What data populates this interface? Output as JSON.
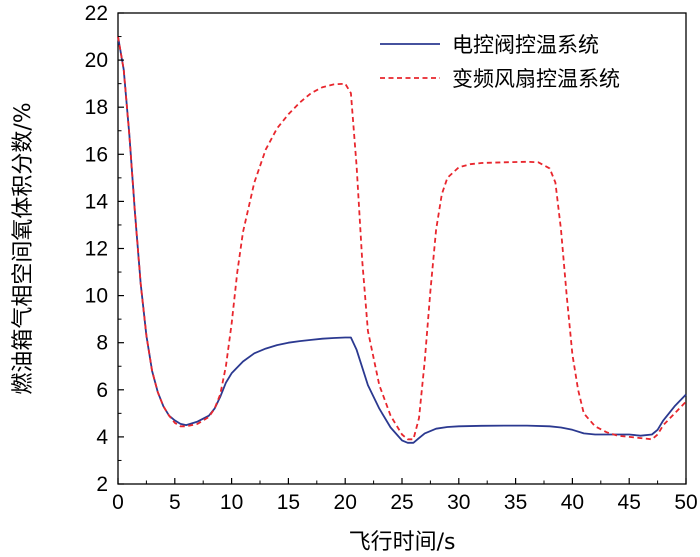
{
  "chart_data": {
    "type": "line",
    "xlabel": "飞行时间/s",
    "ylabel": "燃油箱气相空间氧体积分数/%",
    "xlim": [
      0,
      50
    ],
    "ylim": [
      2,
      22
    ],
    "xticks": [
      0,
      5,
      10,
      15,
      20,
      25,
      30,
      35,
      40,
      45,
      50
    ],
    "yticks": [
      2,
      4,
      6,
      8,
      10,
      12,
      14,
      16,
      18,
      20,
      22
    ],
    "grid": false,
    "legend_position": "top-right",
    "series": [
      {
        "name": "电控阀控温系统",
        "color": "#2b3990",
        "style": "solid",
        "points": [
          [
            0,
            21
          ],
          [
            0.5,
            19.6
          ],
          [
            1,
            16.8
          ],
          [
            1.5,
            13.5
          ],
          [
            2,
            10.5
          ],
          [
            2.5,
            8.3
          ],
          [
            3,
            6.8
          ],
          [
            3.5,
            5.9
          ],
          [
            4,
            5.3
          ],
          [
            4.5,
            4.9
          ],
          [
            5,
            4.7
          ],
          [
            5.5,
            4.55
          ],
          [
            6,
            4.5
          ],
          [
            7,
            4.65
          ],
          [
            8,
            4.9
          ],
          [
            8.5,
            5.2
          ],
          [
            9,
            5.7
          ],
          [
            9.5,
            6.3
          ],
          [
            10,
            6.7
          ],
          [
            11,
            7.2
          ],
          [
            12,
            7.55
          ],
          [
            13,
            7.75
          ],
          [
            14,
            7.9
          ],
          [
            15,
            8.0
          ],
          [
            16,
            8.07
          ],
          [
            17,
            8.12
          ],
          [
            18,
            8.17
          ],
          [
            19,
            8.2
          ],
          [
            20,
            8.22
          ],
          [
            20.5,
            8.22
          ],
          [
            21,
            7.7
          ],
          [
            22,
            6.2
          ],
          [
            23,
            5.2
          ],
          [
            24,
            4.4
          ],
          [
            25,
            3.85
          ],
          [
            25.5,
            3.75
          ],
          [
            26,
            3.75
          ],
          [
            26.5,
            3.95
          ],
          [
            27,
            4.15
          ],
          [
            28,
            4.35
          ],
          [
            29,
            4.42
          ],
          [
            30,
            4.45
          ],
          [
            32,
            4.47
          ],
          [
            34,
            4.48
          ],
          [
            36,
            4.48
          ],
          [
            38,
            4.45
          ],
          [
            39,
            4.4
          ],
          [
            40,
            4.3
          ],
          [
            41,
            4.15
          ],
          [
            42,
            4.1
          ],
          [
            43,
            4.1
          ],
          [
            44,
            4.1
          ],
          [
            45,
            4.1
          ],
          [
            46,
            4.05
          ],
          [
            47,
            4.1
          ],
          [
            47.5,
            4.3
          ],
          [
            48,
            4.7
          ],
          [
            49,
            5.3
          ],
          [
            50,
            5.8
          ]
        ]
      },
      {
        "name": "变频风扇控温系统",
        "color": "#e8262d",
        "style": "dashed",
        "points": [
          [
            0,
            21
          ],
          [
            0.5,
            19.6
          ],
          [
            1,
            16.8
          ],
          [
            1.5,
            13.5
          ],
          [
            2,
            10.5
          ],
          [
            2.5,
            8.3
          ],
          [
            3,
            6.8
          ],
          [
            3.5,
            5.9
          ],
          [
            4,
            5.3
          ],
          [
            4.5,
            4.9
          ],
          [
            5,
            4.6
          ],
          [
            5.5,
            4.45
          ],
          [
            6,
            4.45
          ],
          [
            7,
            4.55
          ],
          [
            8,
            4.85
          ],
          [
            8.5,
            5.2
          ],
          [
            9,
            5.8
          ],
          [
            9.5,
            7.0
          ],
          [
            10,
            8.8
          ],
          [
            10.5,
            11.0
          ],
          [
            11,
            12.7
          ],
          [
            12,
            14.8
          ],
          [
            13,
            16.2
          ],
          [
            14,
            17.1
          ],
          [
            15,
            17.7
          ],
          [
            16,
            18.2
          ],
          [
            17,
            18.6
          ],
          [
            18,
            18.85
          ],
          [
            19,
            18.97
          ],
          [
            20,
            19.0
          ],
          [
            20.5,
            18.6
          ],
          [
            21,
            15.5
          ],
          [
            21.5,
            11.5
          ],
          [
            22,
            8.5
          ],
          [
            23,
            6.2
          ],
          [
            24,
            4.9
          ],
          [
            25,
            4.1
          ],
          [
            25.5,
            3.9
          ],
          [
            26,
            3.9
          ],
          [
            26.5,
            4.8
          ],
          [
            27,
            7.2
          ],
          [
            27.5,
            10.2
          ],
          [
            28,
            12.8
          ],
          [
            28.5,
            14.3
          ],
          [
            29,
            15.0
          ],
          [
            30,
            15.45
          ],
          [
            31,
            15.58
          ],
          [
            32,
            15.63
          ],
          [
            34,
            15.66
          ],
          [
            36,
            15.68
          ],
          [
            37,
            15.66
          ],
          [
            38,
            15.4
          ],
          [
            38.5,
            14.8
          ],
          [
            39,
            12.8
          ],
          [
            39.5,
            10.0
          ],
          [
            40,
            7.5
          ],
          [
            40.5,
            6.0
          ],
          [
            41,
            5.0
          ],
          [
            42,
            4.45
          ],
          [
            43,
            4.2
          ],
          [
            44,
            4.05
          ],
          [
            45,
            4.0
          ],
          [
            46,
            3.95
          ],
          [
            47,
            3.9
          ],
          [
            47.5,
            4.1
          ],
          [
            48,
            4.5
          ],
          [
            49,
            5.0
          ],
          [
            50,
            5.5
          ]
        ]
      }
    ]
  }
}
